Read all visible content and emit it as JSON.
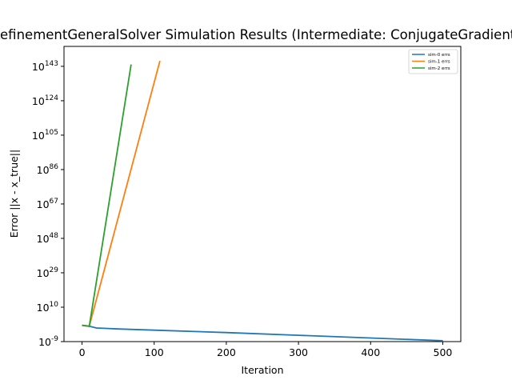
{
  "chart_data": {
    "type": "line",
    "title": "RefinementGeneralSolver Simulation Results (Intermediate: ConjugateGradient)",
    "xlabel": "Iteration",
    "ylabel": "Error ||x - x_true||",
    "xlim": [
      -25,
      525
    ],
    "ylog_exponent_range": [
      -9,
      154
    ],
    "xticks": [
      0,
      100,
      200,
      300,
      400,
      500
    ],
    "yticks_exponent": [
      -9,
      10,
      29,
      48,
      67,
      86,
      105,
      124,
      143
    ],
    "ytick_base": "10",
    "grid": false,
    "legend_position": "top-right",
    "series": [
      {
        "name": "sim-0 errs",
        "color": "#1f77b4",
        "x": [
          0,
          10,
          20,
          50,
          100,
          200,
          300,
          400,
          500
        ],
        "log10_y": [
          0,
          -0.5,
          -1.5,
          -2,
          -2.7,
          -4,
          -5.5,
          -7,
          -8.5
        ]
      },
      {
        "name": "sim-1 errs",
        "color": "#ff7f0e",
        "x": [
          0,
          10,
          108
        ],
        "log10_y": [
          0,
          -0.5,
          146
        ]
      },
      {
        "name": "sim-2 errs",
        "color": "#2ca02c",
        "x": [
          0,
          10,
          68
        ],
        "log10_y": [
          0,
          -0.5,
          144
        ]
      }
    ]
  }
}
